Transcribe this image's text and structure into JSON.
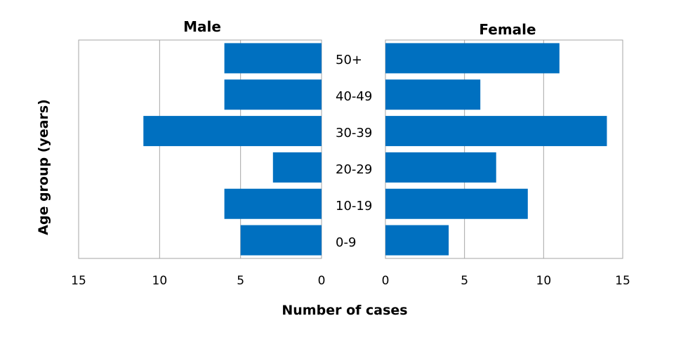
{
  "chart_data": {
    "type": "bar",
    "orientation": "horizontal",
    "layout": "population-pyramid",
    "ylabel": "Age group (years)",
    "xlabel": "Number of cases",
    "categories": [
      "50+",
      "40-49",
      "30-39",
      "20-29",
      "10-19",
      "0-9"
    ],
    "series": [
      {
        "name": "Male",
        "values": [
          6,
          6,
          11,
          3,
          6,
          5
        ],
        "xlim": [
          0,
          15
        ],
        "direction": "right-to-left",
        "ticks": [
          15,
          10,
          5,
          0
        ]
      },
      {
        "name": "Female",
        "values": [
          11,
          6,
          14,
          7,
          9,
          4
        ],
        "xlim": [
          0,
          15
        ],
        "direction": "left-to-right",
        "ticks": [
          0,
          5,
          10,
          15
        ]
      }
    ],
    "grid": true,
    "bar_color": "#0070C0",
    "grid_color": "#A6A6A6"
  }
}
